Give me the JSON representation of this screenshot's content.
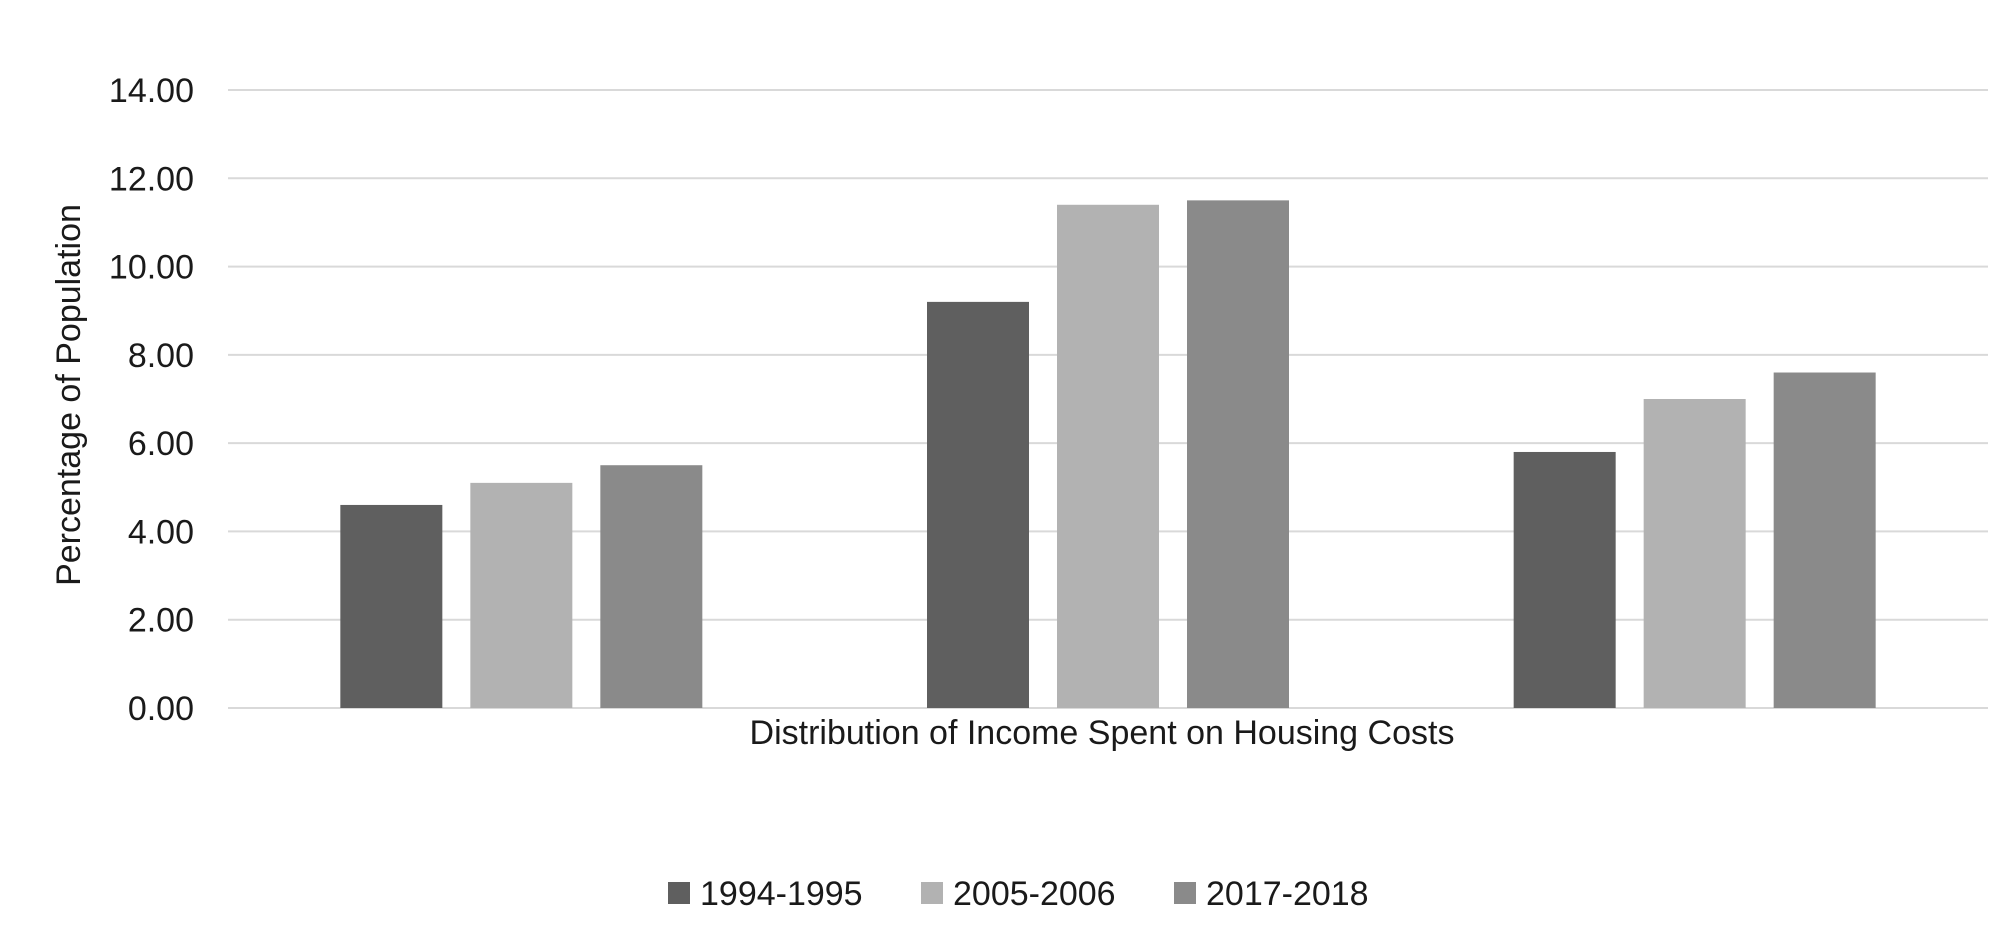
{
  "chart_data": {
    "type": "bar",
    "title": "",
    "xlabel": "Distribution of Income Spent on Housing Costs",
    "ylabel": "Percentage of Population",
    "ylim": [
      0,
      14
    ],
    "y_ticks": [
      "0.00",
      "2.00",
      "4.00",
      "6.00",
      "8.00",
      "10.00",
      "12.00",
      "14.00"
    ],
    "grid": true,
    "legend_position": "bottom",
    "categories": [
      "",
      "",
      ""
    ],
    "series": [
      {
        "name": "1994-1995",
        "color": "#5f5f5f",
        "values": [
          4.6,
          9.2,
          5.8
        ]
      },
      {
        "name": "2005-2006",
        "color": "#b2b2b2",
        "values": [
          5.1,
          11.4,
          7.0
        ]
      },
      {
        "name": "2017-2018",
        "color": "#8a8a8a",
        "values": [
          5.5,
          11.5,
          7.6
        ]
      }
    ]
  }
}
